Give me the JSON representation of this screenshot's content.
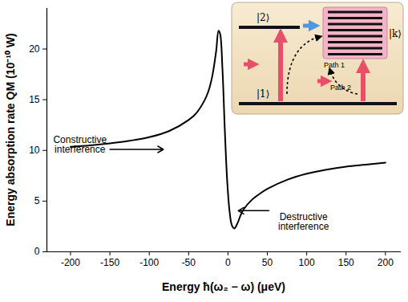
{
  "chart_data": {
    "type": "line",
    "xlabel": "Energy ħ(ω₂ − ω) (μeV)",
    "ylabel": "Energy absorption rate QM (10⁻¹⁰ W)",
    "x": [
      -200,
      -175,
      -150,
      -125,
      -100,
      -75,
      -50,
      -40,
      -30,
      -25,
      -20,
      -15,
      -12,
      -10,
      -7,
      -4,
      -1,
      2,
      5,
      8,
      12,
      16,
      20,
      30,
      40,
      50,
      75,
      100,
      125,
      150,
      175,
      200
    ],
    "values": [
      10.35,
      10.5,
      10.7,
      10.95,
      11.3,
      11.9,
      13.0,
      13.7,
      14.9,
      15.8,
      17.3,
      19.8,
      21.8,
      21.5,
      18.0,
      12.0,
      7.0,
      4.0,
      2.6,
      2.3,
      2.8,
      3.6,
      4.2,
      5.1,
      5.7,
      6.2,
      7.1,
      7.7,
      8.1,
      8.4,
      8.6,
      8.8
    ],
    "color": "#000000",
    "xlim": [
      -230,
      220
    ],
    "xticks": [
      -200,
      -150,
      -100,
      -50,
      0,
      50,
      100,
      150,
      200
    ],
    "ylim": [
      0,
      24
    ],
    "yticks": [
      0,
      5,
      10,
      15,
      20
    ],
    "annotations": [
      {
        "text": "Constructive\ninterference",
        "x": -188,
        "y": 10.6,
        "arrow": [
          -150,
          10.1,
          -82,
          10.1
        ]
      },
      {
        "text": "Destructive\ninterference",
        "x": 96,
        "y": 2.95,
        "arrow": [
          52,
          4.05,
          13,
          4.05
        ]
      }
    ]
  },
  "diagram": {
    "level_upper": "|2⟩",
    "continuum": "|k⟩",
    "level_lower": "|1⟩",
    "path_1": "Path 1",
    "path_2": "Path 2"
  }
}
